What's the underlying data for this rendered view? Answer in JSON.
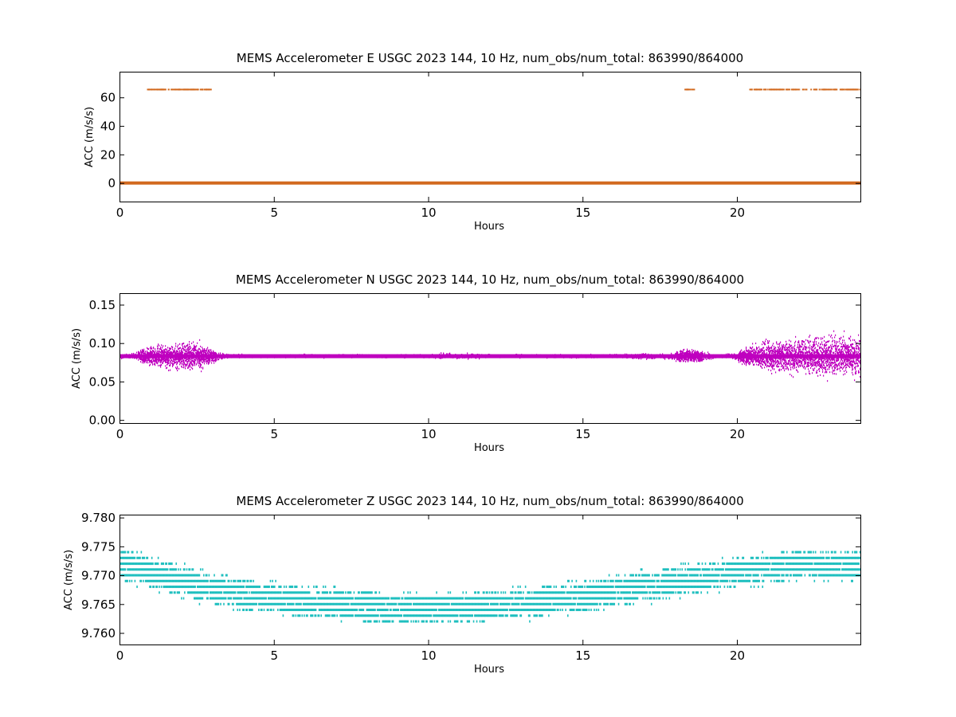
{
  "chart_data": [
    {
      "type": "scatter",
      "title": "MEMS Accelerometer E USGC 2023 144, 10 Hz, num_obs/num_total: 863990/864000",
      "xlabel": "Hours",
      "ylabel": "ACC (m/s/s)",
      "xlim": [
        0,
        24
      ],
      "ylim": [
        -13,
        78
      ],
      "xticks": [
        0,
        5,
        10,
        15,
        20
      ],
      "yticks": [
        0,
        20,
        40,
        60
      ],
      "ytick_labels": [
        "0",
        "20",
        "40",
        "60"
      ],
      "grid": false,
      "color": "#d2691e",
      "series": [
        {
          "baseline": {
            "x_start": 0,
            "x_end": 24,
            "y": 0
          },
          "outlier_segments": [
            {
              "x_start": 0.8,
              "x_end": 2.9,
              "y": 65.5
            },
            {
              "x_start": 18.3,
              "x_end": 18.6,
              "y": 65.5
            },
            {
              "x_start": 20.4,
              "x_end": 24.0,
              "y": 65.5
            }
          ]
        }
      ]
    },
    {
      "type": "scatter",
      "title": "MEMS Accelerometer N USGC 2023 144, 10 Hz, num_obs/num_total: 863990/864000",
      "xlabel": "Hours",
      "ylabel": "ACC (m/s/s)",
      "xlim": [
        0,
        24
      ],
      "ylim": [
        -0.004,
        0.165
      ],
      "xticks": [
        0,
        5,
        10,
        15,
        20
      ],
      "yticks": [
        0.0,
        0.05,
        0.1,
        0.15
      ],
      "ytick_labels": [
        "0.00",
        "0.05",
        "0.10",
        "0.15"
      ],
      "grid": false,
      "color": "#bf00bf",
      "series": [
        {
          "mean": 0.083,
          "envelope": {
            "x": [
              0,
              0.5,
              1.0,
              1.5,
              2.0,
              2.5,
              3.0,
              3.5,
              4.0,
              6.0,
              8.0,
              10.0,
              10.5,
              11.0,
              12.0,
              14.0,
              16.0,
              16.8,
              17.5,
              18.2,
              18.7,
              19.2,
              19.8,
              20.4,
              21.0,
              21.5,
              22.0,
              22.5,
              23.0,
              23.5,
              24.0
            ],
            "amp": [
              0.005,
              0.008,
              0.02,
              0.025,
              0.028,
              0.028,
              0.012,
              0.004,
              0.003,
              0.003,
              0.003,
              0.003,
              0.007,
              0.006,
              0.003,
              0.003,
              0.003,
              0.006,
              0.004,
              0.012,
              0.012,
              0.006,
              0.004,
              0.02,
              0.03,
              0.032,
              0.035,
              0.038,
              0.04,
              0.04,
              0.04
            ]
          }
        }
      ]
    },
    {
      "type": "scatter",
      "title": "MEMS Accelerometer Z USGC 2023 144, 10 Hz, num_obs/num_total: 863990/864000",
      "xlabel": "Hours",
      "ylabel": "ACC (m/s/s)",
      "xlim": [
        0,
        24
      ],
      "ylim": [
        9.758,
        9.7805
      ],
      "xticks": [
        0,
        5,
        10,
        15,
        20
      ],
      "yticks": [
        9.76,
        9.765,
        9.77,
        9.775,
        9.78
      ],
      "ytick_labels": [
        "9.760",
        "9.765",
        "9.770",
        "9.775",
        "9.780"
      ],
      "grid": false,
      "color": "#1fbfbf",
      "series": [
        {
          "trend": {
            "x": [
              0,
              1,
              2,
              3,
              4,
              5,
              6,
              7,
              8,
              9,
              10,
              11,
              12,
              13,
              14,
              15,
              16,
              17,
              18,
              19,
              20,
              21,
              22,
              23,
              24
            ],
            "y": [
              9.7718,
              9.7705,
              9.769,
              9.7676,
              9.7666,
              9.7659,
              9.7653,
              9.7648,
              9.7645,
              9.7643,
              9.7643,
              9.7644,
              9.7646,
              9.765,
              9.7657,
              9.7664,
              9.7672,
              9.768,
              9.7688,
              9.7697,
              9.7705,
              9.7712,
              9.7718,
              9.7717,
              9.7716
            ]
          },
          "spread": 0.0032,
          "quantization": 0.001
        }
      ]
    }
  ]
}
